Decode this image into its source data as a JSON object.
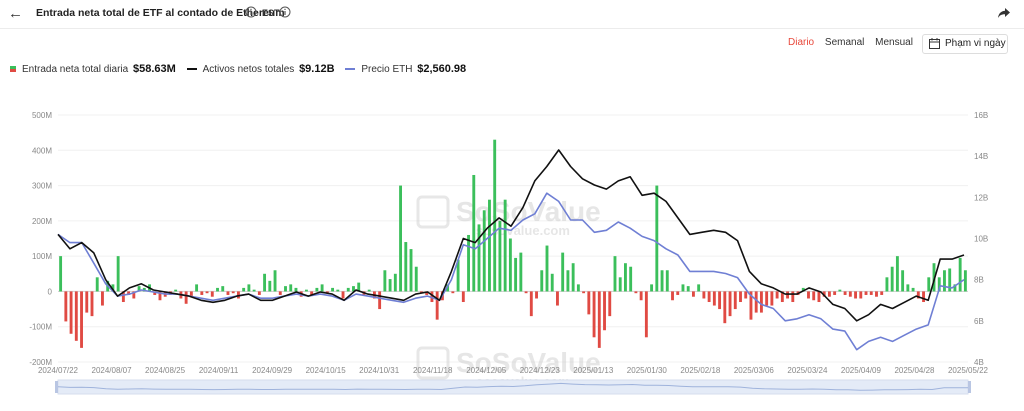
{
  "header": {
    "back_icon": "arrow-left-icon",
    "title": "Entrada neta total de ETF al contado de Ethereum",
    "timezone": "EST",
    "info_icon": "info-icon",
    "share_icon": "share-icon"
  },
  "controls": {
    "daily": "Diario",
    "weekly": "Semanal",
    "monthly": "Mensual",
    "range_label": "Phạm vi ngày",
    "calendar_icon": "calendar-icon"
  },
  "legend": {
    "daily_label": "Entrada neta total diaria",
    "daily_value": "$58.63M",
    "assets_label": "Activos netos totales",
    "assets_value": "$9.12B",
    "price_label": "Precio ETH",
    "price_value": "$2,560.98"
  },
  "watermark": {
    "brand": "SoSoValue",
    "url": "sosovalue.com"
  },
  "colors": {
    "positive": "#3bbf5b",
    "negative": "#e04a43",
    "assets_line": "#111111",
    "price_line": "#6f7fd4",
    "active_tab": "#e8483b"
  },
  "chart_data": {
    "type": "bar",
    "x_ticks": [
      "2024/07/22",
      "2024/08/07",
      "2024/08/25",
      "2024/09/11",
      "2024/09/29",
      "2024/10/15",
      "2024/10/31",
      "2024/11/18",
      "2024/12/05",
      "2024/12/23",
      "2025/01/13",
      "2025/01/30",
      "2025/02/18",
      "2025/03/06",
      "2025/03/24",
      "2025/04/09",
      "2025/04/28",
      "2025/05/22"
    ],
    "y_left_ticks": [
      "500M",
      "400M",
      "300M",
      "200M",
      "100M",
      "0",
      "-100M",
      "-200M"
    ],
    "y_left_range": [
      -200,
      500
    ],
    "y_right_ticks": [
      "16B",
      "14B",
      "12B",
      "10B",
      "8B",
      "6B",
      "4B"
    ],
    "y_right_range": [
      4,
      16
    ],
    "series": [
      {
        "name": "Entrada neta total diaria",
        "unit": "M",
        "values": [
          100,
          -85,
          -120,
          -140,
          -160,
          -60,
          -70,
          40,
          -40,
          30,
          20,
          100,
          -30,
          -10,
          -20,
          15,
          10,
          20,
          -10,
          -25,
          -15,
          -10,
          5,
          -20,
          -35,
          -15,
          20,
          -10,
          -5,
          -15,
          10,
          15,
          -10,
          -5,
          -20,
          10,
          20,
          5,
          -10,
          50,
          30,
          60,
          -10,
          15,
          20,
          10,
          -15,
          5,
          -10,
          10,
          20,
          -5,
          10,
          5,
          -20,
          10,
          15,
          25,
          -10,
          5,
          -20,
          -50,
          60,
          35,
          50,
          300,
          140,
          120,
          70,
          -5,
          -10,
          -30,
          -80,
          -25,
          20,
          -5,
          90,
          -30,
          160,
          330,
          190,
          230,
          260,
          430,
          200,
          260,
          150,
          95,
          110,
          -5,
          -70,
          -20,
          60,
          130,
          50,
          -40,
          110,
          60,
          80,
          20,
          -5,
          -65,
          -130,
          -160,
          -110,
          -70,
          100,
          40,
          80,
          70,
          -5,
          -25,
          -130,
          20,
          300,
          60,
          60,
          -25,
          -10,
          20,
          15,
          -15,
          20,
          -20,
          -30,
          -40,
          -50,
          -90,
          -70,
          -50,
          -30,
          -20,
          -80,
          -60,
          -60,
          -40,
          -40,
          -20,
          -30,
          -20,
          -30,
          -10,
          10,
          -20,
          -25,
          -30,
          -15,
          -15,
          -10,
          5,
          -10,
          -15,
          -20,
          -20,
          -10,
          -10,
          -15,
          -10,
          40,
          70,
          100,
          60,
          20,
          10,
          -20,
          -30,
          40,
          80,
          40,
          60,
          65,
          20,
          95,
          60
        ]
      },
      {
        "name": "Activos netos totales",
        "unit": "B",
        "values": [
          10.2,
          9.5,
          9.8,
          9.3,
          8.0,
          7.2,
          7.6,
          7.8,
          7.5,
          7.4,
          7.3,
          7.2,
          7.0,
          6.9,
          7.0,
          7.2,
          7.3,
          7.0,
          7.0,
          7.2,
          7.4,
          7.2,
          7.4,
          7.3,
          7.0,
          7.5,
          7.3,
          7.2,
          7.1,
          7.0,
          7.3,
          7.4,
          7.0,
          8.4,
          10.0,
          9.8,
          10.5,
          11.0,
          10.6,
          11.5,
          12.8,
          13.5,
          14.3,
          13.5,
          12.9,
          12.6,
          12.4,
          12.8,
          13.0,
          12.1,
          12.2,
          11.8,
          11.0,
          10.2,
          10.3,
          10.4,
          10.3,
          9.9,
          8.4,
          7.8,
          7.6,
          7.3,
          7.3,
          7.6,
          7.4,
          6.8,
          6.6,
          6.0,
          6.3,
          6.8,
          6.6,
          6.9,
          7.2,
          7.0,
          9.0,
          9.0,
          9.2
        ]
      },
      {
        "name": "Precio ETH",
        "unit": "B-scale",
        "values": [
          10.2,
          9.8,
          9.8,
          8.8,
          7.8,
          7.2,
          7.3,
          7.5,
          7.4,
          7.3,
          7.3,
          7.2,
          7.1,
          7.0,
          7.1,
          7.2,
          7.3,
          7.1,
          7.1,
          7.2,
          7.3,
          7.2,
          7.3,
          7.2,
          7.0,
          7.3,
          7.2,
          7.1,
          7.0,
          6.9,
          7.1,
          7.2,
          7.0,
          8.0,
          9.7,
          9.5,
          10.0,
          10.5,
          10.4,
          10.9,
          11.2,
          12.2,
          11.8,
          10.9,
          10.9,
          10.3,
          10.4,
          10.8,
          10.5,
          10.1,
          9.9,
          9.5,
          9.2,
          8.4,
          8.4,
          8.4,
          8.3,
          8.1,
          7.3,
          6.8,
          6.6,
          6.0,
          6.1,
          6.3,
          6.1,
          5.6,
          5.5,
          4.6,
          5.0,
          5.2,
          5.0,
          5.3,
          5.6,
          5.8,
          7.7,
          7.6,
          8.0
        ]
      }
    ]
  }
}
